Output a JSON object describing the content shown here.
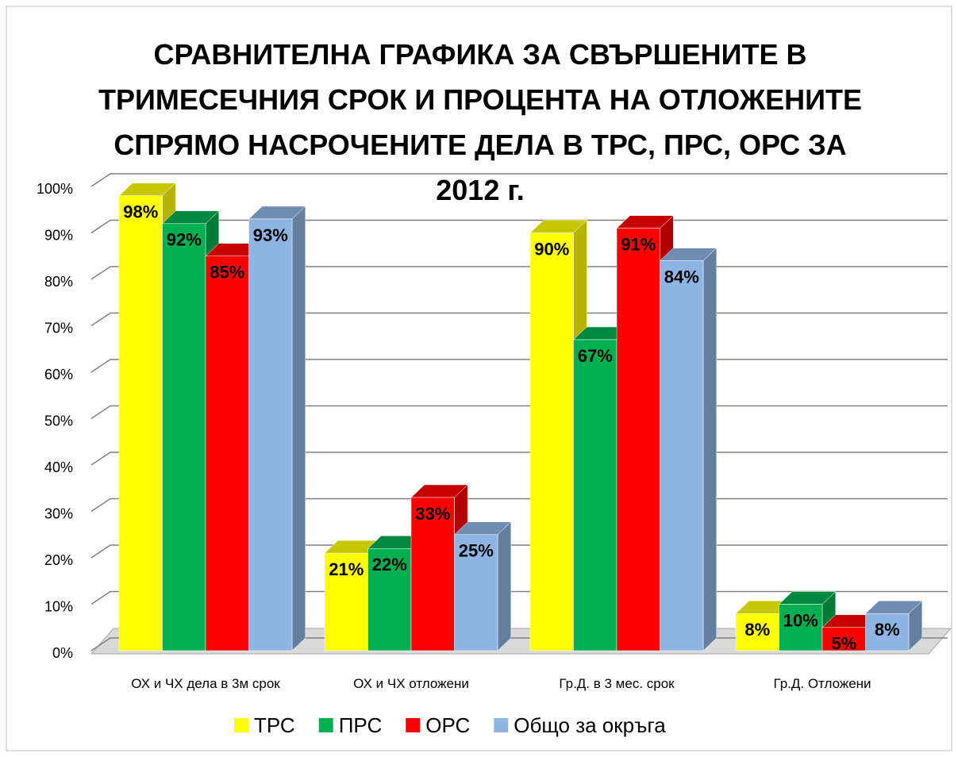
{
  "chart_data": {
    "type": "bar3d",
    "title": "СРАВНИТЕЛНА ГРАФИКА ЗА СВЪРШЕНИТЕ В ТРИМЕСЕЧНИЯ СРОК И ПРОЦЕНТА НА ОТЛОЖЕНИТЕ СПРЯМО НАСРОЧЕНИТЕ ДЕЛА В ТРС, ПРС, ОРС ЗА 2012 г.",
    "categories": [
      "ОХ и ЧХ дела в 3м срок",
      "ОХ и ЧХ отложени",
      "Гр.Д. в 3 мес. срок",
      "Гр.Д. Отложени"
    ],
    "series": [
      {
        "name": "ТРС",
        "color": "#ffff00",
        "values": [
          98,
          21,
          90,
          8
        ],
        "value_labels": [
          "98%",
          "21%",
          "90%",
          "8%"
        ]
      },
      {
        "name": "ПРС",
        "color": "#00b050",
        "values": [
          92,
          22,
          67,
          10
        ],
        "value_labels": [
          "92%",
          "22%",
          "67%",
          "10%"
        ]
      },
      {
        "name": "ОРС",
        "color": "#ff0000",
        "values": [
          85,
          33,
          91,
          5
        ],
        "value_labels": [
          "85%",
          "33%",
          "91%",
          "5%"
        ]
      },
      {
        "name": "Общо за окръга",
        "color": "#8eb4e3",
        "values": [
          93,
          25,
          84,
          8
        ],
        "value_labels": [
          "93%",
          "25%",
          "84%",
          "8%"
        ]
      }
    ],
    "ylim": [
      0,
      100
    ],
    "yticks": [
      {
        "value": 0,
        "label": "0%"
      },
      {
        "value": 10,
        "label": "10%"
      },
      {
        "value": 20,
        "label": "20%"
      },
      {
        "value": 30,
        "label": "30%"
      },
      {
        "value": 40,
        "label": "40%"
      },
      {
        "value": 50,
        "label": "50%"
      },
      {
        "value": 60,
        "label": "60%"
      },
      {
        "value": 70,
        "label": "70%"
      },
      {
        "value": 80,
        "label": "80%"
      },
      {
        "value": 90,
        "label": "90%"
      },
      {
        "value": 100,
        "label": "100%"
      }
    ],
    "grid": true,
    "legend": "bottom"
  }
}
